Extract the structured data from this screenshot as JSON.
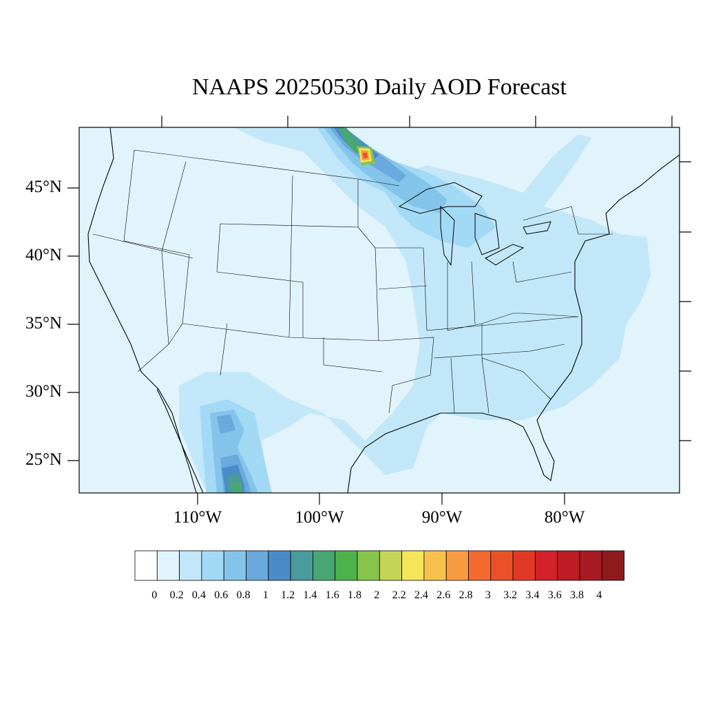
{
  "title": "NAAPS 20250530 Daily AOD Forecast",
  "lat_labels": [
    "45°N",
    "40°N",
    "35°N",
    "30°N",
    "25°N"
  ],
  "lon_labels": [
    "110°W",
    "100°W",
    "90°W",
    "80°W"
  ],
  "colorbar": {
    "labels": [
      "0",
      "0.2",
      "0.4",
      "0.6",
      "0.8",
      "1",
      "1.2",
      "1.4",
      "1.6",
      "1.8",
      "2",
      "2.2",
      "2.4",
      "2.6",
      "2.8",
      "3",
      "3.2",
      "3.4",
      "3.6",
      "3.8",
      "4"
    ],
    "colors": [
      "#ffffff",
      "#e1f3fb",
      "#c2e7f8",
      "#a2d9f5",
      "#85c4ea",
      "#69a9dc",
      "#4a8cc9",
      "#4a9b9b",
      "#48a772",
      "#4cb24a",
      "#86c44c",
      "#c4d457",
      "#f6e45a",
      "#f8c14e",
      "#f89a3f",
      "#f46a2f",
      "#eb5128",
      "#e03a26",
      "#d22128",
      "#be1c24",
      "#a51b21",
      "#8e1a1d"
    ]
  }
}
